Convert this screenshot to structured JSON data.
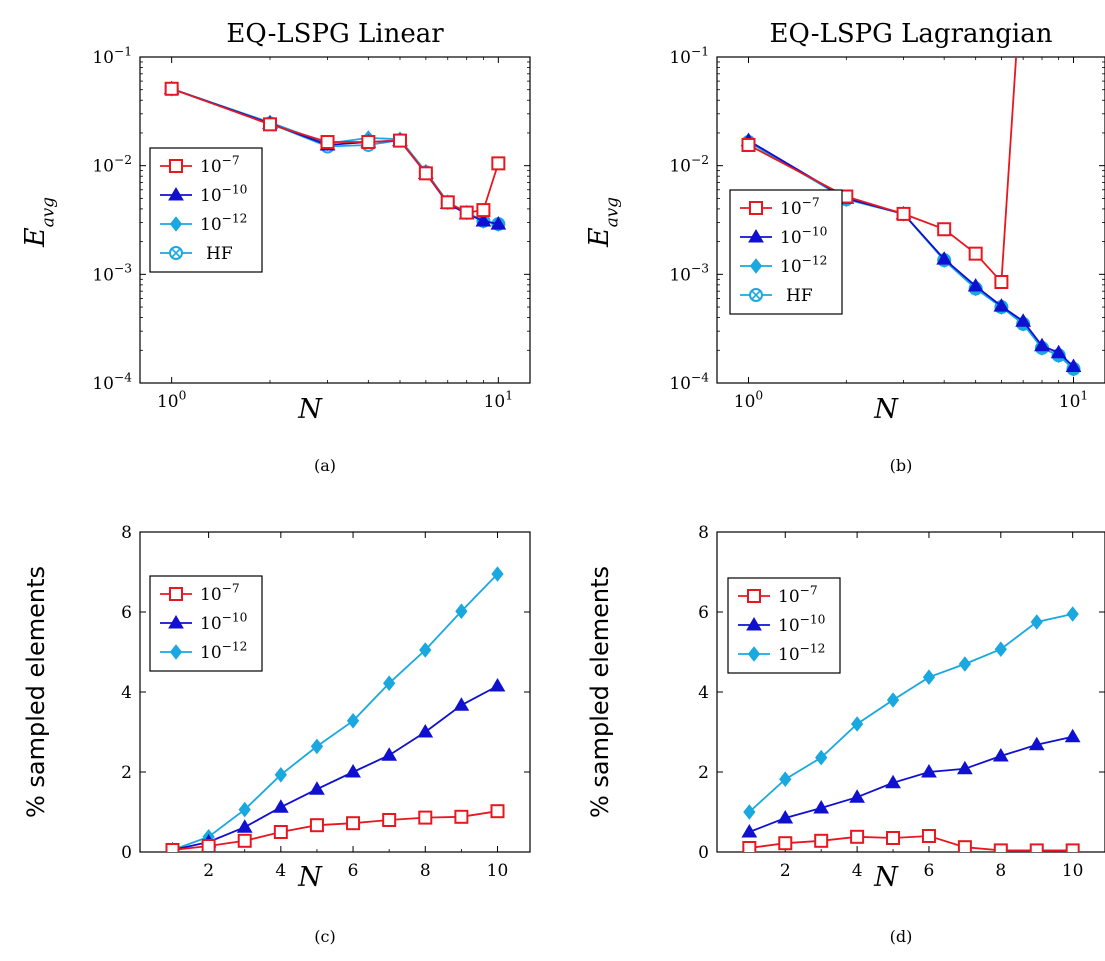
{
  "chart_data": [
    {
      "id": "a",
      "type": "line",
      "title": "EQ-LSPG Linear",
      "caption": "(a)",
      "xlabel": "N",
      "ylabel": "E_avg",
      "x_scale": "log",
      "y_scale": "log",
      "xlim": [
        0.8,
        12.5
      ],
      "ylim": [
        0.0001,
        0.1
      ],
      "xticks": [
        1,
        10
      ],
      "yticks": [
        0.0001,
        0.001,
        0.01,
        0.1
      ],
      "grid": false,
      "legend_position": "left",
      "legend": [
        "10^-7",
        "10^-10",
        "10^-12",
        "HF"
      ],
      "x": [
        1,
        2,
        3,
        4,
        5,
        6,
        7,
        8,
        9,
        10
      ],
      "series": [
        {
          "name": "10^-7",
          "color": "#e8171f",
          "marker": "square",
          "values": [
            0.051,
            0.024,
            0.0165,
            0.0165,
            0.017,
            0.0085,
            0.0046,
            0.0037,
            0.0039,
            0.0105
          ]
        },
        {
          "name": "10^-10",
          "color": "#1010d0",
          "marker": "triangle",
          "values": [
            0.051,
            0.0245,
            0.0155,
            0.0165,
            0.017,
            0.0085,
            0.0045,
            0.0036,
            0.0031,
            0.0029
          ]
        },
        {
          "name": "10^-12",
          "color": "#19a8e0",
          "marker": "diamond",
          "values": [
            0.051,
            0.025,
            0.016,
            0.018,
            0.0175,
            0.0088,
            0.0046,
            0.0037,
            0.0031,
            0.0029
          ]
        },
        {
          "name": "HF",
          "color": "#19a8e0",
          "marker": "otimes",
          "values": [
            0.051,
            0.0245,
            0.015,
            0.0155,
            0.0172,
            0.0087,
            0.0046,
            0.0037,
            0.0031,
            0.0029
          ]
        }
      ]
    },
    {
      "id": "b",
      "type": "line",
      "title": "EQ-LSPG Lagrangian",
      "caption": "(b)",
      "xlabel": "N",
      "ylabel": "E_avg",
      "x_scale": "log",
      "y_scale": "log",
      "xlim": [
        0.8,
        12.5
      ],
      "ylim": [
        0.0001,
        0.1
      ],
      "xticks": [
        1,
        10
      ],
      "yticks": [
        0.0001,
        0.001,
        0.01,
        0.1
      ],
      "grid": false,
      "legend_position": "left",
      "legend": [
        "10^-7",
        "10^-10",
        "10^-12",
        "HF"
      ],
      "x": [
        1,
        2,
        3,
        4,
        5,
        6,
        7,
        8,
        9,
        10
      ],
      "series": [
        {
          "name": "10^-7",
          "color": "#e8171f",
          "marker": "square",
          "values": [
            0.0155,
            0.0052,
            0.0036,
            0.0026,
            0.00155,
            0.00085,
            1.0,
            null,
            null,
            null
          ],
          "marker_points": 6
        },
        {
          "name": "10^-10",
          "color": "#1010d0",
          "marker": "triangle",
          "values": [
            0.017,
            0.005,
            0.0036,
            0.00138,
            0.00078,
            0.00051,
            0.00037,
            0.00022,
            0.00019,
            0.000142
          ]
        },
        {
          "name": "10^-12",
          "color": "#19a8e0",
          "marker": "diamond",
          "values": [
            0.017,
            0.0049,
            0.0036,
            0.00135,
            0.00074,
            0.0005,
            0.00035,
            0.00021,
            0.00018,
            0.000135
          ]
        },
        {
          "name": "HF",
          "color": "#19a8e0",
          "marker": "otimes",
          "values": [
            0.0165,
            0.0049,
            0.0036,
            0.00135,
            0.00074,
            0.0005,
            0.00035,
            0.00021,
            0.00018,
            0.000135
          ]
        }
      ]
    },
    {
      "id": "c",
      "type": "line",
      "title": "",
      "caption": "(c)",
      "xlabel": "N",
      "ylabel": "% sampled elements",
      "x_scale": "linear",
      "y_scale": "linear",
      "xlim": [
        0.1,
        10.9
      ],
      "ylim": [
        0,
        8
      ],
      "xticks": [
        2,
        4,
        6,
        8,
        10
      ],
      "yticks": [
        0,
        2,
        4,
        6,
        8
      ],
      "grid": false,
      "legend_position": "upper left",
      "legend": [
        "10^-7",
        "10^-10",
        "10^-12"
      ],
      "x": [
        1,
        2,
        3,
        4,
        5,
        6,
        7,
        8,
        9,
        10
      ],
      "series": [
        {
          "name": "10^-7",
          "color": "#e8171f",
          "marker": "square",
          "values": [
            0.05,
            0.15,
            0.28,
            0.5,
            0.67,
            0.72,
            0.8,
            0.86,
            0.88,
            1.02
          ]
        },
        {
          "name": "10^-10",
          "color": "#1010d0",
          "marker": "triangle",
          "values": [
            0.05,
            0.25,
            0.62,
            1.12,
            1.57,
            2.0,
            2.42,
            3.0,
            3.67,
            4.15
          ]
        },
        {
          "name": "10^-12",
          "color": "#19a8e0",
          "marker": "diamond",
          "values": [
            0.05,
            0.38,
            1.06,
            1.93,
            2.64,
            3.28,
            4.22,
            5.05,
            6.02,
            6.95
          ]
        }
      ]
    },
    {
      "id": "d",
      "type": "line",
      "title": "",
      "caption": "(d)",
      "xlabel": "N",
      "ylabel": "% sampled elements",
      "x_scale": "linear",
      "y_scale": "linear",
      "xlim": [
        0.1,
        10.9
      ],
      "ylim": [
        0,
        8
      ],
      "xticks": [
        2,
        4,
        6,
        8,
        10
      ],
      "yticks": [
        0,
        2,
        4,
        6,
        8
      ],
      "grid": false,
      "legend_position": "upper left",
      "legend": [
        "10^-7",
        "10^-10",
        "10^-12"
      ],
      "x": [
        1,
        2,
        3,
        4,
        5,
        6,
        7,
        8,
        9,
        10
      ],
      "series": [
        {
          "name": "10^-7",
          "color": "#e8171f",
          "marker": "square",
          "values": [
            0.1,
            0.22,
            0.28,
            0.38,
            0.35,
            0.4,
            0.12,
            0.04,
            0.04,
            0.04
          ]
        },
        {
          "name": "10^-10",
          "color": "#1010d0",
          "marker": "triangle",
          "values": [
            0.5,
            0.85,
            1.1,
            1.37,
            1.73,
            2.0,
            2.08,
            2.4,
            2.68,
            2.88
          ]
        },
        {
          "name": "10^-12",
          "color": "#19a8e0",
          "marker": "diamond",
          "values": [
            1.0,
            1.82,
            2.36,
            3.2,
            3.8,
            4.37,
            4.7,
            5.07,
            5.75,
            5.95
          ]
        }
      ]
    }
  ]
}
